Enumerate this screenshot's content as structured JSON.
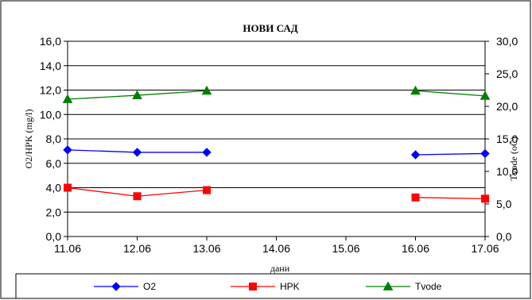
{
  "chart_data": {
    "type": "line",
    "title": "НОВИ САД",
    "xlabel": "дани",
    "ylabel_left": "O2/HPK (mg/l)",
    "ylabel_right": "Tvode (oC)",
    "categories": [
      "11.06",
      "12.06",
      "13.06",
      "14.06",
      "15.06",
      "16.06",
      "17.06"
    ],
    "y_left_ticks": [
      "0,0",
      "2,0",
      "4,0",
      "6,0",
      "8,0",
      "10,0",
      "12,0",
      "14,0",
      "16,0"
    ],
    "y_right_ticks": [
      "0,0",
      "5,0",
      "10,0",
      "15,0",
      "20,0",
      "25,0",
      "30,0"
    ],
    "ylim_left": [
      0,
      16
    ],
    "ylim_right": [
      0,
      30
    ],
    "grid": "horizontal",
    "legend_position": "bottom",
    "series": [
      {
        "name": "O2",
        "axis": "left",
        "color": "#0000ff",
        "marker": "diamond",
        "values": [
          7.1,
          6.9,
          6.9,
          null,
          null,
          6.7,
          6.8
        ]
      },
      {
        "name": "HPK",
        "axis": "left",
        "color": "#ff0000",
        "marker": "square",
        "values": [
          4.0,
          3.3,
          3.8,
          null,
          null,
          3.2,
          3.1
        ]
      },
      {
        "name": "Tvode",
        "axis": "right",
        "color": "#008000",
        "marker": "triangle",
        "values": [
          21.1,
          21.7,
          22.4,
          null,
          null,
          22.4,
          21.6
        ]
      }
    ]
  }
}
